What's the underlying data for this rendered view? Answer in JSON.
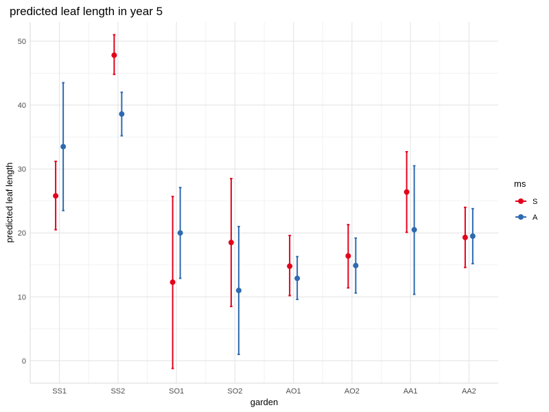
{
  "chart_data": {
    "type": "scatter",
    "title": "predicted leaf length in year 5",
    "xlabel": "garden",
    "ylabel": "predicted leaf length",
    "categories": [
      "SS1",
      "SS2",
      "SO1",
      "SO2",
      "AO1",
      "AO2",
      "AA1",
      "AA2"
    ],
    "yticks": [
      0,
      10,
      20,
      30,
      40,
      50
    ],
    "ylim": [
      -3.5,
      53
    ],
    "grid": true,
    "legend": {
      "title": "ms",
      "position": "right"
    },
    "series": [
      {
        "name": "S",
        "color": "#e3001b",
        "values": [
          25.8,
          47.8,
          12.3,
          18.5,
          14.8,
          16.4,
          26.4,
          19.3
        ],
        "lower": [
          20.5,
          44.8,
          -1.2,
          8.5,
          10.2,
          11.4,
          20.1,
          14.6
        ],
        "upper": [
          31.2,
          51.0,
          25.7,
          28.5,
          19.6,
          21.3,
          32.7,
          24.0
        ]
      },
      {
        "name": "A",
        "color": "#2d6ab0",
        "values": [
          33.5,
          38.6,
          20.0,
          11.0,
          12.9,
          14.9,
          20.5,
          19.5
        ],
        "lower": [
          23.5,
          35.2,
          12.9,
          1.0,
          9.6,
          10.6,
          10.4,
          15.2
        ],
        "upper": [
          43.5,
          42.0,
          27.1,
          21.0,
          16.3,
          19.2,
          30.5,
          23.8
        ]
      }
    ]
  }
}
